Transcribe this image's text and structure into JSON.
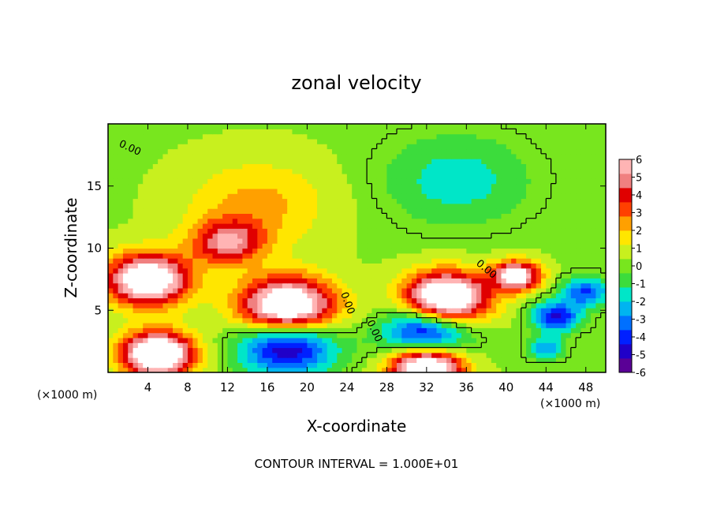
{
  "chart_data": {
    "type": "heatmap",
    "title": "zonal velocity",
    "xlabel": "X-coordinate",
    "ylabel": "Z-coordinate",
    "x_unit": "(×1000 m)",
    "x_unit_right": "(×1000 m)",
    "xlim": [
      0,
      50
    ],
    "ylim": [
      0,
      20
    ],
    "x_ticks": [
      4,
      8,
      12,
      16,
      20,
      24,
      28,
      32,
      36,
      40,
      44,
      48
    ],
    "y_ticks": [
      5,
      10,
      15
    ],
    "colorbar_ticks": [
      6,
      5,
      4,
      3,
      2,
      1,
      0,
      -1,
      -2,
      -3,
      -4,
      -5,
      -6
    ],
    "colorbar_range": [
      -6,
      6
    ],
    "colorbar_colors": [
      "#5a0096",
      "#2000c8",
      "#0020ff",
      "#0070ff",
      "#00b4f0",
      "#00e6c8",
      "#3cdc3c",
      "#78e61e",
      "#c8f01e",
      "#ffe600",
      "#ffa000",
      "#ff4000",
      "#e00000",
      "#f08080",
      "#ffb4b4"
    ],
    "contour_label": "0.00",
    "contour_interval_text": "CONTOUR INTERVAL = 1.000E+01",
    "features": [
      {
        "x": 35,
        "z": 15.5,
        "value": -2.0,
        "r": 6
      },
      {
        "x": 15,
        "z": 13.5,
        "value": 2.0,
        "r": 6
      },
      {
        "x": 12,
        "z": 10.5,
        "value": 4.5,
        "r": 3
      },
      {
        "x": 4,
        "z": 7.5,
        "value": 8.0,
        "r": 3.5
      },
      {
        "x": 18,
        "z": 5.2,
        "value": 9.0,
        "r": 4
      },
      {
        "x": 34,
        "z": 6.0,
        "value": 9.0,
        "r": 3.5
      },
      {
        "x": 41,
        "z": 7.8,
        "value": 7.0,
        "r": 2
      },
      {
        "x": 18,
        "z": 2.3,
        "value": -6.5,
        "r": 4
      },
      {
        "x": 32,
        "z": 3.2,
        "value": -6.0,
        "r": 3.5
      },
      {
        "x": 5,
        "z": 1.5,
        "value": 9.0,
        "r": 3
      },
      {
        "x": 32,
        "z": 0.5,
        "value": 9.0,
        "r": 3
      },
      {
        "x": 45,
        "z": 4.5,
        "value": -5.0,
        "r": 2
      },
      {
        "x": 44,
        "z": 2.0,
        "value": -3.0,
        "r": 1.5
      },
      {
        "x": 48,
        "z": 6.5,
        "value": -4.0,
        "r": 2
      }
    ]
  }
}
